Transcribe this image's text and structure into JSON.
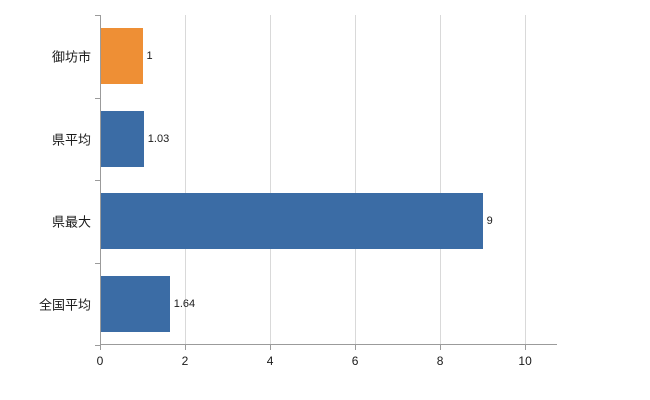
{
  "chart_data": {
    "type": "bar",
    "orientation": "horizontal",
    "title": "",
    "xlabel": "",
    "ylabel": "",
    "categories": [
      "御坊市",
      "県平均",
      "県最大",
      "全国平均"
    ],
    "values": [
      1,
      1.03,
      9,
      1.64
    ],
    "value_labels": [
      "1",
      "1.03",
      "9",
      "1.64"
    ],
    "bar_colors": [
      "#EE8F35",
      "#3B6CA5",
      "#3B6CA5",
      "#3B6CA5"
    ],
    "xlim": [
      0,
      10.75
    ],
    "x_tick_labels": [
      "0",
      "2",
      "4",
      "6",
      "8",
      "10"
    ],
    "x_tick_values": [
      0,
      2,
      4,
      6,
      8,
      10
    ],
    "grid": true,
    "legend": "none",
    "colors": {
      "grid": "#d9d9d9",
      "axis": "#9b9b9b",
      "text": "#1a1a1a"
    }
  }
}
